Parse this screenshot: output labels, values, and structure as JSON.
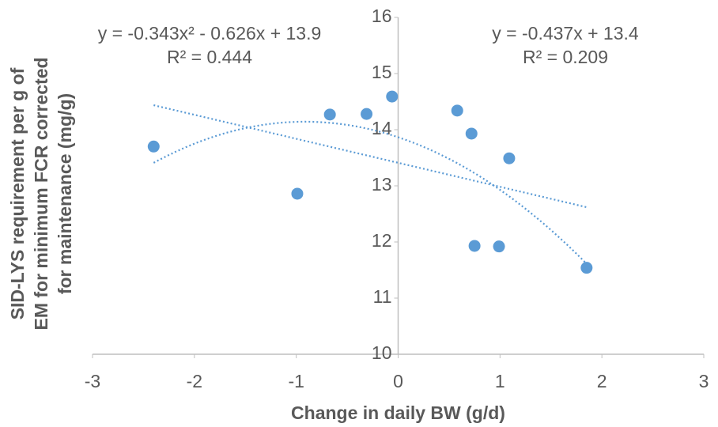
{
  "chart_data": {
    "type": "scatter",
    "xlabel": "Change in daily BW (g/d)",
    "ylabel": [
      "SID-LYS requirement per g of",
      "EM for minimum FCR corrected",
      "for maintenance (mg/g)"
    ],
    "annotations": [
      {
        "lines": [
          "y = -0.343x² - 0.626x + 13.9",
          "R² = 0.444"
        ],
        "trend": "quadratic"
      },
      {
        "lines": [
          "y = -0.437x + 13.4",
          "R² = 0.209"
        ],
        "trend": "linear"
      }
    ],
    "color": "#5b9bd5",
    "x": [
      -2.4,
      -0.99,
      -0.67,
      -0.31,
      -0.06,
      0.58,
      0.72,
      1.09,
      0.75,
      0.99,
      1.85
    ],
    "values": [
      13.7,
      12.86,
      14.27,
      14.28,
      14.59,
      14.34,
      13.93,
      13.49,
      11.93,
      11.92,
      11.54
    ],
    "xlim": [
      -3,
      3
    ],
    "xticks": [
      -3,
      -2,
      -1,
      0,
      1,
      2,
      3
    ],
    "ylim": [
      10,
      16
    ],
    "yticks": [
      10,
      11,
      12,
      13,
      14,
      15,
      16
    ]
  }
}
